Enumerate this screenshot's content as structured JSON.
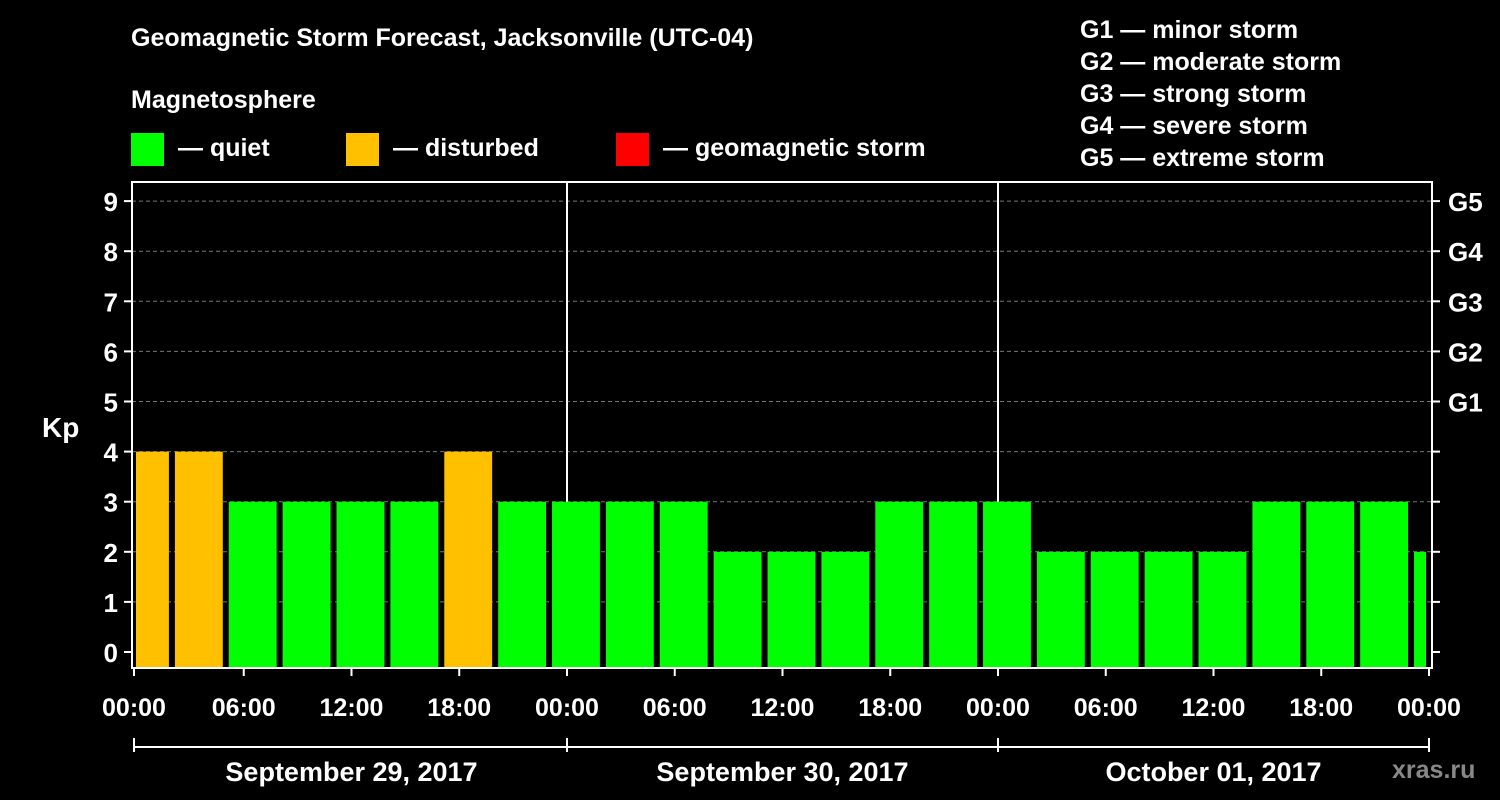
{
  "title": "Geomagnetic Storm Forecast, Jacksonville (UTC-04)",
  "subtitle": "Magnetosphere",
  "legend": [
    {
      "label": "— quiet",
      "color": "#00ff00"
    },
    {
      "label": "— disturbed",
      "color": "#ffc000"
    },
    {
      "label": "— geomagnetic storm",
      "color": "#ff0000"
    }
  ],
  "storm_scale": [
    "G1 — minor storm",
    "G2 — moderate storm",
    "G3 — strong storm",
    "G4 — severe storm",
    "G5 — extreme storm"
  ],
  "ylabel": "Kp",
  "watermark": "xras.ru",
  "chart_data": {
    "type": "bar",
    "ylabel": "Kp",
    "ylim": [
      0,
      9
    ],
    "yticks": [
      "0",
      "1",
      "2",
      "3",
      "4",
      "5",
      "6",
      "7",
      "8",
      "9"
    ],
    "right_ticks": [
      {
        "value": 5,
        "label": "G1"
      },
      {
        "value": 6,
        "label": "G2"
      },
      {
        "value": 7,
        "label": "G3"
      },
      {
        "value": 8,
        "label": "G4"
      },
      {
        "value": 9,
        "label": "G5"
      }
    ],
    "xticks": [
      "00:00",
      "06:00",
      "12:00",
      "18:00",
      "00:00",
      "06:00",
      "12:00",
      "18:00",
      "00:00",
      "06:00",
      "12:00",
      "18:00",
      "00:00"
    ],
    "days": [
      "September 29, 2017",
      "September 30, 2017",
      "October 01, 2017"
    ],
    "hours_total": 72,
    "bars": [
      {
        "start": 0,
        "end": 2,
        "kp": 4,
        "status": "disturbed"
      },
      {
        "start": 2,
        "end": 5,
        "kp": 4,
        "status": "disturbed"
      },
      {
        "start": 5,
        "end": 8,
        "kp": 3,
        "status": "quiet"
      },
      {
        "start": 8,
        "end": 11,
        "kp": 3,
        "status": "quiet"
      },
      {
        "start": 11,
        "end": 14,
        "kp": 3,
        "status": "quiet"
      },
      {
        "start": 14,
        "end": 17,
        "kp": 3,
        "status": "quiet"
      },
      {
        "start": 17,
        "end": 20,
        "kp": 4,
        "status": "disturbed"
      },
      {
        "start": 20,
        "end": 23,
        "kp": 3,
        "status": "quiet"
      },
      {
        "start": 23,
        "end": 26,
        "kp": 3,
        "status": "quiet"
      },
      {
        "start": 26,
        "end": 29,
        "kp": 3,
        "status": "quiet"
      },
      {
        "start": 29,
        "end": 32,
        "kp": 3,
        "status": "quiet"
      },
      {
        "start": 32,
        "end": 35,
        "kp": 2,
        "status": "quiet"
      },
      {
        "start": 35,
        "end": 38,
        "kp": 2,
        "status": "quiet"
      },
      {
        "start": 38,
        "end": 41,
        "kp": 2,
        "status": "quiet"
      },
      {
        "start": 41,
        "end": 44,
        "kp": 3,
        "status": "quiet"
      },
      {
        "start": 44,
        "end": 47,
        "kp": 3,
        "status": "quiet"
      },
      {
        "start": 47,
        "end": 50,
        "kp": 3,
        "status": "quiet"
      },
      {
        "start": 50,
        "end": 53,
        "kp": 2,
        "status": "quiet"
      },
      {
        "start": 53,
        "end": 56,
        "kp": 2,
        "status": "quiet"
      },
      {
        "start": 56,
        "end": 59,
        "kp": 2,
        "status": "quiet"
      },
      {
        "start": 59,
        "end": 62,
        "kp": 2,
        "status": "quiet"
      },
      {
        "start": 62,
        "end": 65,
        "kp": 3,
        "status": "quiet"
      },
      {
        "start": 65,
        "end": 68,
        "kp": 3,
        "status": "quiet"
      },
      {
        "start": 68,
        "end": 71,
        "kp": 3,
        "status": "quiet"
      },
      {
        "start": 71,
        "end": 72,
        "kp": 2,
        "status": "quiet"
      }
    ],
    "status_colors": {
      "quiet": "#00ff00",
      "disturbed": "#ffc000",
      "storm": "#ff0000"
    }
  }
}
